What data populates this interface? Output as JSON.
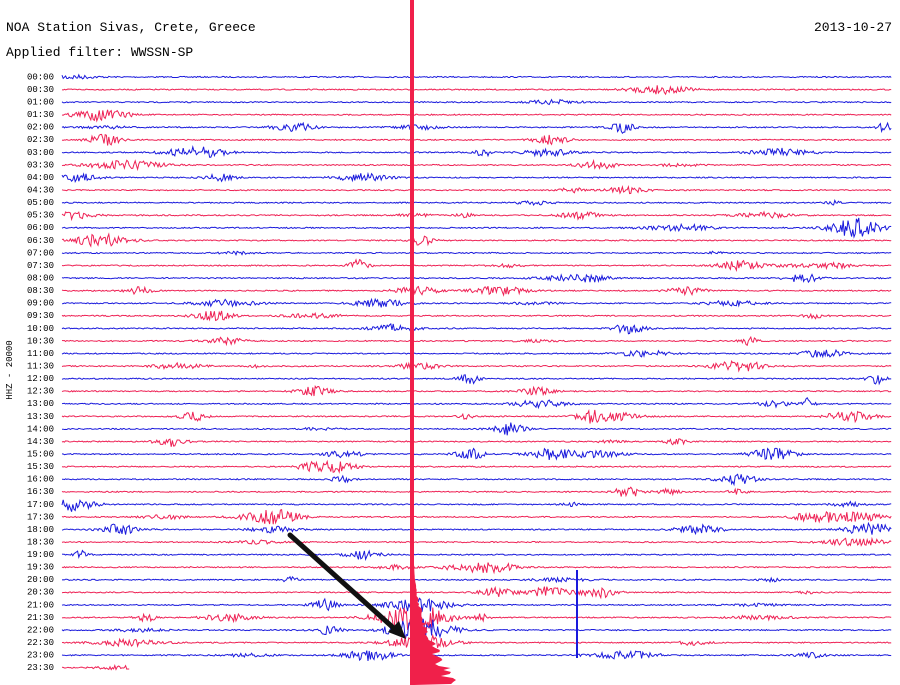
{
  "header": {
    "title": "NOA Station Sivas, Crete, Greece",
    "filter": "Applied filter: WWSSN-SP",
    "date": "2013-10-27"
  },
  "axis_label": "HHZ - 20000",
  "rows": [
    "00:00",
    "00:30",
    "01:00",
    "01:30",
    "02:00",
    "02:30",
    "03:00",
    "03:30",
    "04:00",
    "04:30",
    "05:00",
    "05:30",
    "06:00",
    "06:30",
    "07:00",
    "07:30",
    "08:00",
    "08:30",
    "09:00",
    "09:30",
    "10:00",
    "10:30",
    "11:00",
    "11:30",
    "12:00",
    "12:30",
    "13:00",
    "13:30",
    "14:00",
    "14:30",
    "15:00",
    "15:30",
    "16:00",
    "16:30",
    "17:00",
    "17:30",
    "18:00",
    "18:30",
    "19:00",
    "19:30",
    "20:00",
    "20:30",
    "21:00",
    "21:30",
    "22:00",
    "22:30",
    "23:00",
    "23:30"
  ]
}
